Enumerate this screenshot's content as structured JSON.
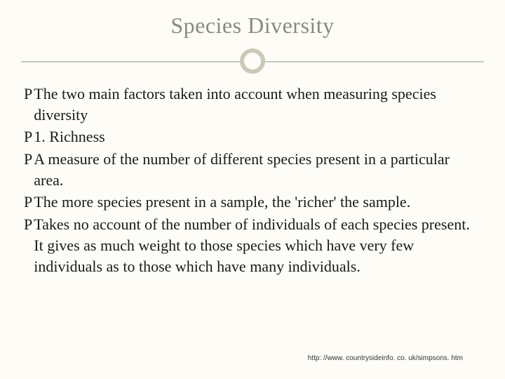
{
  "slide": {
    "title": "Species Diversity",
    "title_color": "#8a8a7a",
    "title_fontsize": 32,
    "background_color": "#fdfcf7",
    "divider_color": "#c9c9b8",
    "bullet_glyph": "P",
    "bullet_items": [
      "The two main factors taken into account when measuring species diversity",
      "1. Richness",
      "A measure of the number of different species present in a particular area.",
      "The more species present in a sample, the 'richer' the sample.",
      "Takes no account of the number of individuals of each species present. It gives as much weight to those species which have very few individuals as to those which have many individuals."
    ],
    "body_fontsize": 22,
    "body_color": "#1a1a1a",
    "footer_url": "http: //www. countrysideinfo. co. uk/simpsons. htm"
  }
}
